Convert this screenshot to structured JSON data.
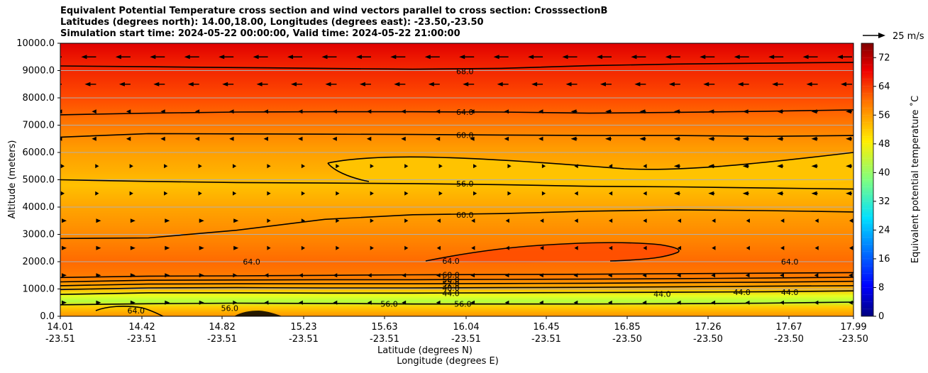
{
  "chart_data": {
    "type": "contourf",
    "title": [
      "Equivalent Potential Temperature cross section and wind vectors parallel to cross section: CrosssectionB",
      "Latitudes (degrees north): 14.00,18.00, Longitudes (degrees east): -23.50,-23.50",
      "Simulation start time: 2024-05-22 00:00:00, Valid time: 2024-05-22 21:00:00"
    ],
    "ylabel": "Altitude (meters)",
    "xlabel": "Latitude (degrees N)",
    "xlabel2": "Longitude (degrees E)",
    "ylim": [
      0,
      10000
    ],
    "y_ticks": [
      "0.0",
      "1000.0",
      "2000.0",
      "3000.0",
      "4000.0",
      "5000.0",
      "6000.0",
      "7000.0",
      "8000.0",
      "9000.0",
      "10000.0"
    ],
    "x_ticks": [
      {
        "lat": "14.01",
        "lon": "-23.51"
      },
      {
        "lat": "14.42",
        "lon": "-23.51"
      },
      {
        "lat": "14.82",
        "lon": "-23.51"
      },
      {
        "lat": "15.23",
        "lon": "-23.51"
      },
      {
        "lat": "15.63",
        "lon": "-23.51"
      },
      {
        "lat": "16.04",
        "lon": "-23.51"
      },
      {
        "lat": "16.45",
        "lon": "-23.51"
      },
      {
        "lat": "16.85",
        "lon": "-23.50"
      },
      {
        "lat": "17.26",
        "lon": "-23.50"
      },
      {
        "lat": "17.67",
        "lon": "-23.50"
      },
      {
        "lat": "17.99",
        "lon": "-23.50"
      }
    ],
    "grid": "horizontal",
    "colorbar": {
      "label": "Equivalent potential temperature ˚C",
      "range": [
        0,
        76
      ],
      "ticks": [
        "0",
        "8",
        "16",
        "24",
        "32",
        "40",
        "48",
        "56",
        "64",
        "72"
      ],
      "colormap": "jet"
    },
    "quiver_key": "25 m/s",
    "contour_levels": [
      44,
      48,
      52,
      56,
      60,
      64,
      68
    ],
    "contour_labels": [
      {
        "text": "68.0",
        "x": 16.04,
        "y": 8980
      },
      {
        "text": "64.0",
        "x": 16.04,
        "y": 7480
      },
      {
        "text": "60.0",
        "x": 16.04,
        "y": 6630
      },
      {
        "text": "56.0",
        "x": 16.04,
        "y": 4860
      },
      {
        "text": "60.0",
        "x": 16.04,
        "y": 3720
      },
      {
        "text": "64.0",
        "x": 14.97,
        "y": 2000
      },
      {
        "text": "64.0",
        "x": 15.97,
        "y": 2030
      },
      {
        "text": "60.0",
        "x": 15.97,
        "y": 1520
      },
      {
        "text": "56.0",
        "x": 15.97,
        "y": 1340
      },
      {
        "text": "52.0",
        "x": 15.97,
        "y": 1190
      },
      {
        "text": "48.0",
        "x": 15.97,
        "y": 1040
      },
      {
        "text": "44.0",
        "x": 15.97,
        "y": 850
      },
      {
        "text": "56.0",
        "x": 15.66,
        "y": 450
      },
      {
        "text": "56.0",
        "x": 16.03,
        "y": 450
      },
      {
        "text": "64.0",
        "x": 14.39,
        "y": 210
      },
      {
        "text": "56.0",
        "x": 14.86,
        "y": 300
      },
      {
        "text": "44.0",
        "x": 17.03,
        "y": 820
      },
      {
        "text": "44.0",
        "x": 17.43,
        "y": 880
      },
      {
        "text": "44.0",
        "x": 17.67,
        "y": 880
      },
      {
        "text": "64.0",
        "x": 17.67,
        "y": 2000
      }
    ],
    "contour_lines": [
      {
        "level": 68,
        "y": [
          9170,
          9140,
          9110,
          9080,
          9050,
          9080,
          9180,
          9240,
          9270,
          9300
        ]
      },
      {
        "level": 64,
        "y": [
          7380,
          7440,
          7480,
          7490,
          7490,
          7480,
          7440,
          7470,
          7510,
          7560
        ]
      },
      {
        "level": 60,
        "y": [
          6560,
          6690,
          6680,
          6670,
          6660,
          6640,
          6620,
          6620,
          6590,
          6620
        ]
      },
      {
        "level": 56,
        "y": [
          5000,
          4940,
          4900,
          4880,
          4860,
          4820,
          4760,
          4740,
          4700,
          4660
        ]
      },
      {
        "level": 60,
        "y": [
          2850,
          2870,
          3150,
          3550,
          3720,
          3760,
          3850,
          3900,
          3870,
          3820
        ]
      },
      {
        "level": 60,
        "y": [
          1420,
          1470,
          1480,
          1500,
          1520,
          1530,
          1540,
          1560,
          1580,
          1600
        ]
      },
      {
        "level": 56,
        "y": [
          1260,
          1320,
          1330,
          1340,
          1340,
          1350,
          1360,
          1380,
          1400,
          1430
        ]
      },
      {
        "level": 52,
        "y": [
          1120,
          1180,
          1190,
          1190,
          1190,
          1200,
          1210,
          1230,
          1250,
          1280
        ]
      },
      {
        "level": 48,
        "y": [
          980,
          1040,
          1050,
          1040,
          1040,
          1050,
          1060,
          1080,
          1100,
          1120
        ]
      },
      {
        "level": 44,
        "y": [
          800,
          860,
          860,
          850,
          850,
          860,
          870,
          880,
          900,
          930
        ]
      },
      {
        "level": 56,
        "y": [
          420,
          460,
          480,
          470,
          450,
          450,
          450,
          460,
          480,
          520
        ]
      }
    ]
  }
}
